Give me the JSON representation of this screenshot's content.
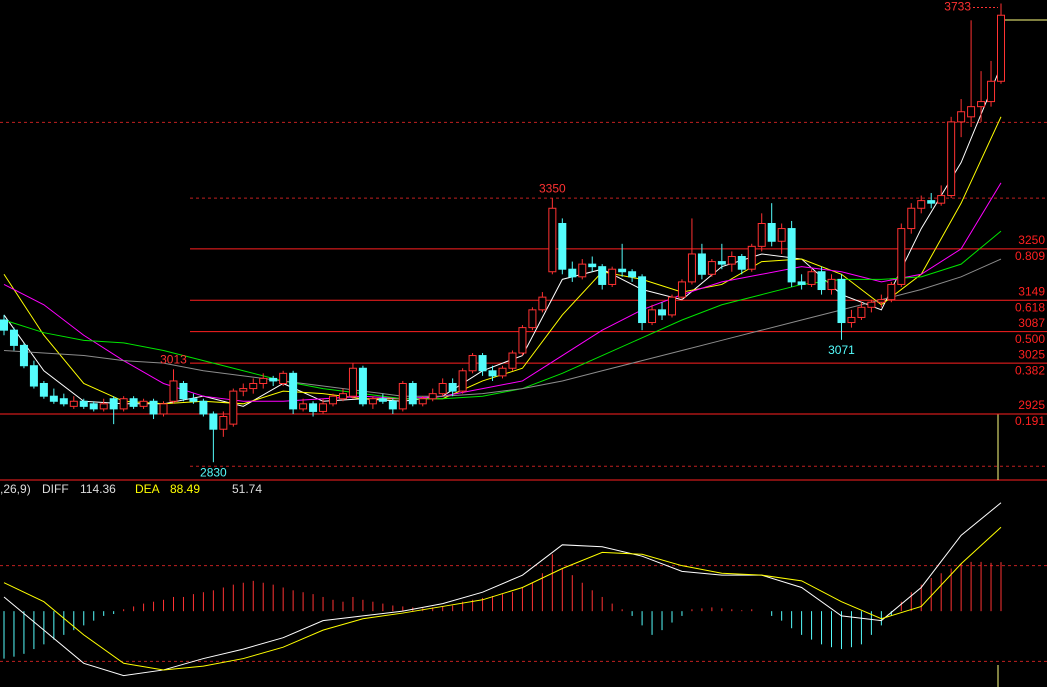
{
  "chart_data": {
    "type": "candlestick",
    "ylim": [
      2795,
      3740
    ],
    "up_color": "#ff3232",
    "down_color": "#54fcfc",
    "ohlc": [
      [
        3110,
        3120,
        3080,
        3090
      ],
      [
        3090,
        3095,
        3050,
        3060
      ],
      [
        3060,
        3065,
        3015,
        3020
      ],
      [
        3020,
        3030,
        2975,
        2980
      ],
      [
        2985,
        2990,
        2955,
        2960
      ],
      [
        2960,
        2975,
        2945,
        2950
      ],
      [
        2955,
        2965,
        2940,
        2945
      ],
      [
        2940,
        2960,
        2935,
        2950
      ],
      [
        2950,
        2955,
        2935,
        2940
      ],
      [
        2945,
        2950,
        2930,
        2935
      ],
      [
        2935,
        2955,
        2930,
        2945
      ],
      [
        2955,
        2960,
        2905,
        2935
      ],
      [
        2935,
        2960,
        2930,
        2955
      ],
      [
        2955,
        2960,
        2935,
        2940
      ],
      [
        2940,
        2955,
        2935,
        2950
      ],
      [
        2950,
        2955,
        2915,
        2925
      ],
      [
        2925,
        2950,
        2920,
        2945
      ],
      [
        2950,
        3013,
        2945,
        2990
      ],
      [
        2985,
        2990,
        2950,
        2955
      ],
      [
        2955,
        2965,
        2945,
        2950
      ],
      [
        2950,
        2955,
        2920,
        2925
      ],
      [
        2925,
        2930,
        2830,
        2895
      ],
      [
        2895,
        2930,
        2880,
        2920
      ],
      [
        2905,
        2975,
        2900,
        2970
      ],
      [
        2970,
        2985,
        2960,
        2975
      ],
      [
        2975,
        2995,
        2965,
        2985
      ],
      [
        2985,
        3005,
        2975,
        2995
      ],
      [
        2995,
        3000,
        2980,
        2990
      ],
      [
        2985,
        3010,
        2980,
        3005
      ],
      [
        3005,
        3010,
        2925,
        2935
      ],
      [
        2935,
        2955,
        2930,
        2945
      ],
      [
        2945,
        2950,
        2920,
        2930
      ],
      [
        2930,
        2955,
        2925,
        2945
      ],
      [
        2945,
        2965,
        2940,
        2960
      ],
      [
        2955,
        2975,
        2950,
        2965
      ],
      [
        2960,
        3025,
        2955,
        3015
      ],
      [
        3015,
        3020,
        2940,
        2945
      ],
      [
        2945,
        2960,
        2935,
        2955
      ],
      [
        2955,
        2965,
        2945,
        2950
      ],
      [
        2950,
        2955,
        2925,
        2935
      ],
      [
        2935,
        2990,
        2930,
        2985
      ],
      [
        2985,
        2990,
        2940,
        2945
      ],
      [
        2945,
        2960,
        2940,
        2955
      ],
      [
        2955,
        2975,
        2950,
        2965
      ],
      [
        2965,
        2995,
        2960,
        2985
      ],
      [
        2985,
        2995,
        2960,
        2970
      ],
      [
        2970,
        3015,
        2965,
        3010
      ],
      [
        3010,
        3045,
        3005,
        3040
      ],
      [
        3040,
        3045,
        3000,
        3010
      ],
      [
        3010,
        3020,
        2990,
        3000
      ],
      [
        3000,
        3020,
        2995,
        3015
      ],
      [
        3015,
        3050,
        3010,
        3045
      ],
      [
        3045,
        3100,
        3040,
        3095
      ],
      [
        3095,
        3135,
        3090,
        3130
      ],
      [
        3130,
        3165,
        3125,
        3155
      ],
      [
        3205,
        3350,
        3200,
        3330
      ],
      [
        3300,
        3310,
        3200,
        3210
      ],
      [
        3210,
        3225,
        3185,
        3195
      ],
      [
        3195,
        3230,
        3190,
        3220
      ],
      [
        3220,
        3235,
        3205,
        3215
      ],
      [
        3215,
        3220,
        3170,
        3180
      ],
      [
        3180,
        3215,
        3175,
        3210
      ],
      [
        3210,
        3260,
        3195,
        3205
      ],
      [
        3205,
        3210,
        3185,
        3195
      ],
      [
        3195,
        3200,
        3090,
        3105
      ],
      [
        3105,
        3140,
        3100,
        3130
      ],
      [
        3130,
        3145,
        3110,
        3120
      ],
      [
        3120,
        3160,
        3115,
        3155
      ],
      [
        3155,
        3190,
        3150,
        3185
      ],
      [
        3185,
        3310,
        3180,
        3240
      ],
      [
        3240,
        3260,
        3190,
        3200
      ],
      [
        3200,
        3230,
        3195,
        3225
      ],
      [
        3225,
        3260,
        3210,
        3220
      ],
      [
        3220,
        3245,
        3205,
        3235
      ],
      [
        3235,
        3240,
        3200,
        3210
      ],
      [
        3210,
        3260,
        3205,
        3255
      ],
      [
        3255,
        3320,
        3245,
        3300
      ],
      [
        3300,
        3340,
        3255,
        3265
      ],
      [
        3265,
        3300,
        3240,
        3290
      ],
      [
        3290,
        3305,
        3175,
        3185
      ],
      [
        3185,
        3200,
        3170,
        3180
      ],
      [
        3180,
        3210,
        3175,
        3205
      ],
      [
        3205,
        3215,
        3160,
        3170
      ],
      [
        3170,
        3200,
        3160,
        3190
      ],
      [
        3190,
        3200,
        3071,
        3105
      ],
      [
        3105,
        3130,
        3095,
        3115
      ],
      [
        3115,
        3145,
        3110,
        3135
      ],
      [
        3135,
        3150,
        3125,
        3145
      ],
      [
        3145,
        3160,
        3135,
        3150
      ],
      [
        3150,
        3185,
        3145,
        3180
      ],
      [
        3180,
        3300,
        3175,
        3290
      ],
      [
        3290,
        3340,
        3280,
        3330
      ],
      [
        3330,
        3355,
        3320,
        3345
      ],
      [
        3345,
        3360,
        3330,
        3340
      ],
      [
        3340,
        3375,
        3335,
        3355
      ],
      [
        3355,
        3510,
        3350,
        3500
      ],
      [
        3500,
        3545,
        3470,
        3520
      ],
      [
        3510,
        3700,
        3490,
        3530
      ],
      [
        3530,
        3600,
        3500,
        3540
      ],
      [
        3540,
        3620,
        3530,
        3580
      ],
      [
        3580,
        3733,
        3575,
        3710
      ]
    ],
    "x": [
      0,
      4,
      8,
      12,
      16,
      20,
      24,
      28,
      32,
      36,
      40,
      44,
      48,
      52,
      56,
      60,
      64,
      68,
      72,
      76,
      80,
      84,
      88,
      92,
      96,
      100
    ],
    "lines": [
      {
        "color": "#ffffff",
        "values": [
          3120,
          3010,
          2950,
          2945,
          2945,
          2960,
          2940,
          2985,
          2950,
          2955,
          2950,
          2960,
          3010,
          3040,
          3190,
          3210,
          3170,
          3150,
          3215,
          3240,
          3230,
          3160,
          3130,
          3290,
          3420,
          3610
        ]
      },
      {
        "color": "#ffff00",
        "values": [
          3200,
          3080,
          2985,
          2950,
          2945,
          2950,
          2945,
          2970,
          2965,
          2955,
          2955,
          2955,
          2990,
          3015,
          3120,
          3205,
          3190,
          3165,
          3180,
          3225,
          3230,
          3200,
          3140,
          3200,
          3340,
          3510
        ]
      },
      {
        "color": "#ff00ff",
        "values": [
          3180,
          3140,
          3080,
          3030,
          2985,
          2960,
          2950,
          2950,
          2955,
          2960,
          2955,
          2960,
          2975,
          2990,
          3040,
          3090,
          3130,
          3160,
          3185,
          3200,
          3215,
          3205,
          3185,
          3200,
          3250,
          3380
        ]
      },
      {
        "color": "#00e600",
        "values": [
          3110,
          3085,
          3070,
          3065,
          3050,
          3030,
          3010,
          2990,
          2975,
          2965,
          2955,
          2955,
          2960,
          2975,
          3005,
          3040,
          3075,
          3110,
          3140,
          3160,
          3180,
          3190,
          3190,
          3195,
          3220,
          3285
        ]
      },
      {
        "color": "#8c8c8c",
        "values": [
          3050,
          3045,
          3040,
          3030,
          3025,
          3010,
          3000,
          2990,
          2980,
          2970,
          2960,
          2960,
          2965,
          2975,
          2990,
          3010,
          3030,
          3050,
          3070,
          3090,
          3110,
          3130,
          3150,
          3170,
          3195,
          3230
        ]
      }
    ],
    "level_color": "#ff2020",
    "levels": [
      {
        "value": 3250,
        "ratio": "0.809"
      },
      {
        "value": 3149,
        "ratio": "0.618"
      },
      {
        "value": 3087,
        "ratio": "0.500"
      },
      {
        "value": 3025,
        "ratio": "0.382"
      },
      {
        "value": 2925,
        "ratio": "0.191"
      }
    ],
    "grid_levels": [
      2822,
      3350,
      3499
    ],
    "annotations": [
      {
        "value": 3733,
        "index": 100,
        "color": "#ff3232"
      },
      {
        "value": 3350,
        "index": 55,
        "color": "#ff3232"
      },
      {
        "value": 3013,
        "index": 17,
        "color": "#ff3232"
      },
      {
        "value": 2830,
        "index": 21,
        "color": "#54fcfc"
      },
      {
        "value": 3071,
        "index": 84,
        "color": "#54fcfc"
      }
    ],
    "macd": {
      "ylim": [
        -80,
        131
      ],
      "params": ",26,9)",
      "diff_label": "DIFF",
      "diff": 114.36,
      "dea_label": "DEA",
      "dea": 88.49,
      "macd": 51.74,
      "diff_color": "#ffffff",
      "dea_color": "#ffff00",
      "grid_levels": [
        -53,
        48
      ],
      "histogram": [
        -50,
        -48,
        -45,
        -40,
        -35,
        -30,
        -25,
        -20,
        -15,
        -10,
        -5,
        -3,
        2,
        5,
        8,
        10,
        12,
        15,
        15,
        18,
        20,
        22,
        25,
        28,
        30,
        32,
        30,
        28,
        25,
        22,
        20,
        18,
        15,
        12,
        10,
        15,
        12,
        10,
        8,
        6,
        5,
        4,
        3,
        4,
        5,
        6,
        10,
        12,
        14,
        16,
        18,
        20,
        25,
        30,
        40,
        60,
        45,
        38,
        30,
        22,
        15,
        8,
        2,
        -5,
        -15,
        -25,
        -20,
        -12,
        -5,
        2,
        3,
        4,
        3,
        2,
        1,
        2,
        0,
        -5,
        -10,
        -18,
        -25,
        -30,
        -35,
        -38,
        -40,
        -38,
        -35,
        -25,
        -15,
        -5,
        10,
        20,
        28,
        35,
        40,
        45,
        50,
        52,
        52,
        51,
        51.74
      ],
      "diff_line": [
        15,
        -20,
        -55,
        -68,
        -62,
        -50,
        -40,
        -28,
        -10,
        -5,
        0,
        8,
        20,
        38,
        70,
        68,
        58,
        42,
        38,
        38,
        25,
        -5,
        -10,
        25,
        80,
        114.36
      ],
      "dea_line": [
        30,
        10,
        -25,
        -55,
        -62,
        -58,
        -50,
        -38,
        -20,
        -8,
        -2,
        5,
        12,
        25,
        45,
        62,
        60,
        48,
        40,
        38,
        32,
        10,
        -8,
        5,
        50,
        88.49
      ]
    }
  }
}
